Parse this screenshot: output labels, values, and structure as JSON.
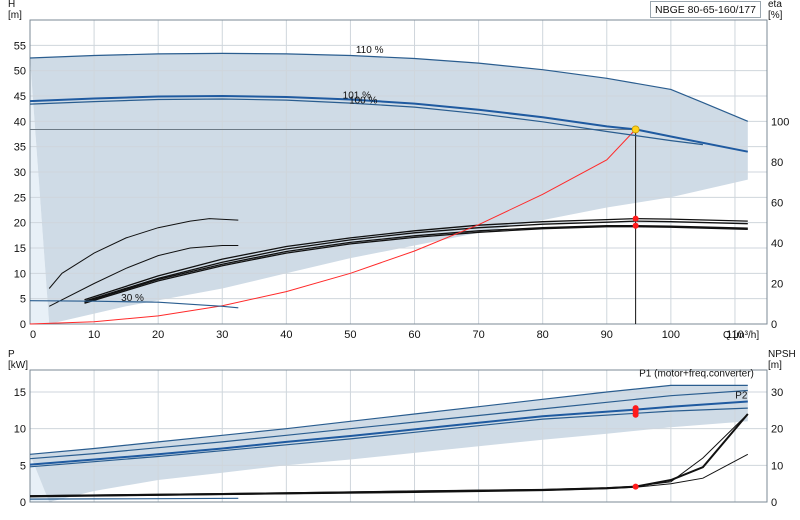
{
  "title": "NBGE 80-65-160/177",
  "chart_data": [
    {
      "type": "line",
      "name": "head",
      "xlabel": "Q [m³/h]",
      "ylabel_top": "H",
      "ylabel_unit": "[m]",
      "y2label_top": "eta",
      "y2label_unit": "[%]",
      "xlim": [
        0,
        115
      ],
      "ylim": [
        0,
        60
      ],
      "y2lim": [
        0,
        150
      ],
      "xticks": [
        0,
        10,
        20,
        30,
        40,
        50,
        60,
        70,
        80,
        90,
        100,
        110
      ],
      "yticks": [
        0,
        5,
        10,
        15,
        20,
        25,
        30,
        35,
        40,
        45,
        50,
        55
      ],
      "y2ticks": [
        0,
        20,
        40,
        60,
        80,
        100
      ],
      "grid": true,
      "annotations": [
        {
          "text": "110 %",
          "x": 53,
          "y": 53.5
        },
        {
          "text": "101 %",
          "x": 51,
          "y": 44.5
        },
        {
          "text": "100 %",
          "x": 52,
          "y": 43.5
        },
        {
          "text": "30 %",
          "x": 16,
          "y": 4.5
        }
      ],
      "region_upper": [
        [
          0,
          52.5
        ],
        [
          10,
          53
        ],
        [
          20,
          53.3
        ],
        [
          30,
          53.4
        ],
        [
          40,
          53.3
        ],
        [
          50,
          53
        ],
        [
          60,
          52.4
        ],
        [
          70,
          51.5
        ],
        [
          80,
          50.2
        ],
        [
          90,
          48.5
        ],
        [
          100,
          46.3
        ],
        [
          105,
          43.7
        ],
        [
          112,
          40
        ]
      ],
      "region_lower": [
        [
          3,
          0
        ],
        [
          15,
          3.5
        ],
        [
          30,
          7
        ],
        [
          40,
          10
        ],
        [
          50,
          13
        ],
        [
          60,
          15.5
        ],
        [
          70,
          18
        ],
        [
          80,
          20.5
        ],
        [
          90,
          23
        ],
        [
          100,
          25
        ],
        [
          112,
          28.5
        ]
      ],
      "series": [
        {
          "values": [
            [
              0,
              52.5
            ],
            [
              10,
              53
            ],
            [
              20,
              53.3
            ],
            [
              30,
              53.4
            ],
            [
              40,
              53.3
            ],
            [
              50,
              53
            ],
            [
              60,
              52.4
            ],
            [
              70,
              51.5
            ],
            [
              80,
              50.2
            ],
            [
              90,
              48.5
            ],
            [
              100,
              46.3
            ],
            [
              105,
              43.7
            ],
            [
              112,
              40
            ]
          ],
          "color": "#2a5d8f"
        },
        {
          "values": [
            [
              0,
              44
            ],
            [
              10,
              44.5
            ],
            [
              20,
              44.9
            ],
            [
              30,
              45
            ],
            [
              40,
              44.8
            ],
            [
              50,
              44.3
            ],
            [
              60,
              43.5
            ],
            [
              70,
              42.3
            ],
            [
              80,
              40.8
            ],
            [
              90,
              39
            ],
            [
              94.5,
              38.4
            ],
            [
              100,
              37
            ],
            [
              112,
              34
            ]
          ],
          "color": "#1f5aa0"
        },
        {
          "values": [
            [
              0,
              43.4
            ],
            [
              10,
              43.9
            ],
            [
              20,
              44.3
            ],
            [
              30,
              44.4
            ],
            [
              40,
              44.2
            ],
            [
              50,
              43.6
            ],
            [
              60,
              42.8
            ],
            [
              70,
              41.5
            ],
            [
              80,
              39.9
            ],
            [
              90,
              38
            ],
            [
              100,
              36.2
            ],
            [
              105,
              35.4
            ]
          ],
          "color": "#2a5d8f"
        },
        {
          "values": [
            [
              0,
              4.6
            ],
            [
              10,
              4.5
            ],
            [
              20,
              4.3
            ],
            [
              30,
              3.5
            ],
            [
              32.5,
              3.2
            ]
          ],
          "color": "#2a5d8f"
        }
      ],
      "efficiency_curves": [
        {
          "values": [
            [
              3,
              7
            ],
            [
              5,
              10
            ],
            [
              10,
              14
            ],
            [
              15,
              17
            ],
            [
              20,
              19
            ],
            [
              25,
              20.3
            ],
            [
              28,
              20.8
            ],
            [
              32.5,
              20.5
            ]
          ]
        },
        {
          "values": [
            [
              3,
              3.5
            ],
            [
              10,
              8
            ],
            [
              15,
              11
            ],
            [
              20,
              13.5
            ],
            [
              25,
              15
            ],
            [
              30,
              15.5
            ],
            [
              32.5,
              15.5
            ]
          ]
        },
        {
          "values": [
            [
              8.5,
              4.5
            ],
            [
              20,
              9
            ],
            [
              30,
              12.2
            ],
            [
              40,
              14.8
            ],
            [
              50,
              16.6
            ],
            [
              60,
              18
            ],
            [
              70,
              19
            ],
            [
              80,
              19.7
            ],
            [
              90,
              20.1
            ],
            [
              94.5,
              20.3
            ],
            [
              100,
              20.2
            ],
            [
              112,
              19.8
            ]
          ]
        },
        {
          "values": [
            [
              8.5,
              4.8
            ],
            [
              20,
              9.5
            ],
            [
              30,
              12.8
            ],
            [
              40,
              15.3
            ],
            [
              50,
              17
            ],
            [
              60,
              18.4
            ],
            [
              70,
              19.5
            ],
            [
              80,
              20.2
            ],
            [
              90,
              20.6
            ],
            [
              94.5,
              20.8
            ],
            [
              100,
              20.7
            ],
            [
              112,
              20.3
            ]
          ]
        },
        {
          "values": [
            [
              8.5,
              4.3
            ],
            [
              20,
              8.8
            ],
            [
              30,
              11.8
            ],
            [
              40,
              14.3
            ],
            [
              50,
              16.1
            ],
            [
              60,
              17.4
            ],
            [
              70,
              18.4
            ],
            [
              80,
              19.0
            ],
            [
              90,
              19.4
            ],
            [
              94.5,
              19.4
            ],
            [
              100,
              19.3
            ],
            [
              112,
              18.9
            ]
          ]
        },
        {
          "values": [
            [
              8.5,
              4.1
            ],
            [
              20,
              8.5
            ],
            [
              30,
              11.5
            ],
            [
              40,
              14.0
            ],
            [
              50,
              15.8
            ],
            [
              60,
              17.1
            ],
            [
              70,
              18.1
            ],
            [
              80,
              18.8
            ],
            [
              90,
              19.2
            ],
            [
              94.5,
              19.2
            ],
            [
              100,
              19.1
            ],
            [
              112,
              18.7
            ]
          ]
        }
      ],
      "system_curve": [
        [
          0,
          0
        ],
        [
          10,
          0.45
        ],
        [
          20,
          1.6
        ],
        [
          30,
          3.6
        ],
        [
          40,
          6.4
        ],
        [
          50,
          10
        ],
        [
          60,
          14.4
        ],
        [
          70,
          19.6
        ],
        [
          80,
          25.6
        ],
        [
          90,
          32.4
        ],
        [
          94.5,
          38.4
        ]
      ],
      "duty_point": {
        "x": 94.5,
        "y": 38.4
      },
      "operating_points": [
        [
          94.5,
          20.8
        ],
        [
          94.5,
          19.4
        ]
      ]
    },
    {
      "type": "line",
      "name": "power_npsh",
      "ylabel_top": "P",
      "ylabel_unit": "[kW]",
      "y2label_top": "NPSH",
      "y2label_unit": "[m]",
      "xlim": [
        0,
        115
      ],
      "ylim": [
        0,
        18
      ],
      "y2lim": [
        0,
        36
      ],
      "yticks": [
        0,
        5,
        10,
        15
      ],
      "y2ticks": [
        0,
        10,
        20,
        30
      ],
      "grid": true,
      "annotations": [
        {
          "text": "P1 (motor+freq.converter)",
          "x": 104,
          "y": 17.1
        },
        {
          "text": "P2",
          "x": 111,
          "y": 14.1
        }
      ],
      "region_upper": [
        [
          0,
          6.5
        ],
        [
          10,
          7.3
        ],
        [
          20,
          8.2
        ],
        [
          30,
          9.1
        ],
        [
          40,
          10
        ],
        [
          50,
          11
        ],
        [
          60,
          12
        ],
        [
          70,
          13
        ],
        [
          80,
          14
        ],
        [
          90,
          15
        ],
        [
          100,
          15.9
        ],
        [
          112,
          15.9
        ]
      ],
      "region_lower": [
        [
          3,
          0
        ],
        [
          10,
          1.5
        ],
        [
          20,
          3
        ],
        [
          30,
          4
        ],
        [
          40,
          5
        ],
        [
          50,
          5.8
        ],
        [
          60,
          6.7
        ],
        [
          70,
          7.6
        ],
        [
          80,
          8.5
        ],
        [
          90,
          9.3
        ],
        [
          100,
          10.2
        ],
        [
          112,
          11
        ]
      ],
      "series": [
        {
          "name": "P1 (motor+freq.converter)",
          "values": [
            [
              0,
              6.5
            ],
            [
              10,
              7.3
            ],
            [
              20,
              8.2
            ],
            [
              30,
              9.1
            ],
            [
              40,
              10
            ],
            [
              50,
              11
            ],
            [
              60,
              12
            ],
            [
              70,
              13
            ],
            [
              80,
              14
            ],
            [
              90,
              15
            ],
            [
              100,
              15.9
            ],
            [
              112,
              15.9
            ]
          ],
          "color": "#2a5d8f"
        },
        {
          "values": [
            [
              0,
              5.9
            ],
            [
              10,
              6.6
            ],
            [
              20,
              7.4
            ],
            [
              30,
              8.2
            ],
            [
              40,
              9.1
            ],
            [
              50,
              10
            ],
            [
              60,
              10.9
            ],
            [
              70,
              11.8
            ],
            [
              80,
              12.7
            ],
            [
              90,
              13.6
            ],
            [
              100,
              14.5
            ],
            [
              112,
              15.2
            ]
          ],
          "color": "#2a5d8f"
        },
        {
          "name": "P2",
          "values": [
            [
              0,
              5.1
            ],
            [
              10,
              5.8
            ],
            [
              20,
              6.5
            ],
            [
              30,
              7.3
            ],
            [
              40,
              8.2
            ],
            [
              50,
              9.0
            ],
            [
              60,
              9.9
            ],
            [
              70,
              10.8
            ],
            [
              80,
              11.7
            ],
            [
              94.5,
              12.6
            ],
            [
              100,
              13
            ],
            [
              112,
              13.7
            ]
          ],
          "color": "#1f5aa0"
        },
        {
          "values": [
            [
              0,
              4.8
            ],
            [
              10,
              5.5
            ],
            [
              20,
              6.2
            ],
            [
              30,
              7.0
            ],
            [
              40,
              7.8
            ],
            [
              50,
              8.6
            ],
            [
              60,
              9.5
            ],
            [
              70,
              10.4
            ],
            [
              80,
              11.3
            ],
            [
              94.5,
              12.1
            ],
            [
              100,
              12.4
            ],
            [
              112,
              12.8
            ]
          ],
          "color": "#2a5d8f"
        },
        {
          "values": [
            [
              0,
              0.4
            ],
            [
              10,
              0.42
            ],
            [
              20,
              0.45
            ],
            [
              32.5,
              0.5
            ]
          ],
          "color": "#2a5d8f"
        }
      ],
      "npsh_curves": [
        {
          "values": [
            [
              0,
              1.6
            ],
            [
              20,
              2
            ],
            [
              40,
              2.4
            ],
            [
              60,
              2.9
            ],
            [
              80,
              3.3
            ],
            [
              90,
              3.8
            ],
            [
              94.5,
              4.2
            ],
            [
              100,
              6
            ],
            [
              105,
              9.5
            ],
            [
              112,
              24
            ]
          ]
        },
        {
          "values": [
            [
              0,
              1.7
            ],
            [
              20,
              2.1
            ],
            [
              40,
              2.5
            ],
            [
              60,
              3
            ],
            [
              80,
              3.4
            ],
            [
              90,
              3.9
            ],
            [
              94.5,
              4.3
            ],
            [
              100,
              5.5
            ],
            [
              105,
              12
            ],
            [
              112,
              24
            ]
          ]
        },
        {
          "values": [
            [
              0,
              1.4
            ],
            [
              20,
              1.8
            ],
            [
              40,
              2.2
            ],
            [
              60,
              2.6
            ],
            [
              80,
              3.1
            ],
            [
              90,
              3.6
            ],
            [
              94.5,
              4
            ],
            [
              100,
              5
            ],
            [
              105,
              6.5
            ],
            [
              112,
              13
            ]
          ]
        }
      ],
      "operating_points": [
        [
          94.5,
          12.8
        ],
        [
          94.5,
          12.4
        ],
        [
          94.5,
          11.9
        ],
        [
          94.5,
          4.2
        ]
      ]
    }
  ],
  "colors": {
    "region_fill": "#cfdbe6",
    "region_light": "#e8f0f7",
    "curve_blue": "#2a5d8f",
    "curve_black": "#111111",
    "system_curve": "#ff2a2a",
    "duty_marker": "#ffd21a",
    "op_marker": "#ff1a1a"
  }
}
